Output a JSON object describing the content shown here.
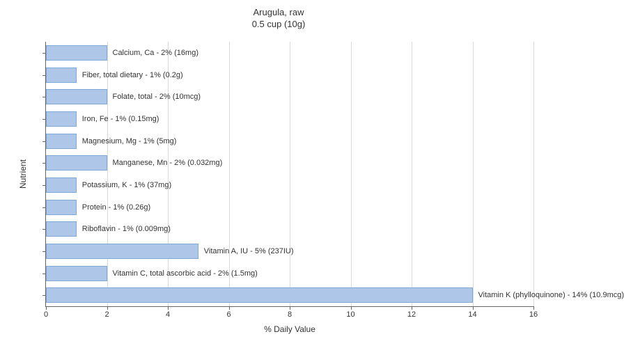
{
  "chart": {
    "type": "bar-horizontal",
    "title_line1": "Arugula, raw",
    "title_line2": "0.5 cup (10g)",
    "x_axis_label": "% Daily Value",
    "y_axis_label": "Nutrient",
    "xlim": [
      0,
      16
    ],
    "x_ticks": [
      0,
      2,
      4,
      6,
      8,
      10,
      12,
      14,
      16
    ],
    "bar_color": "#aec7e8",
    "bar_border_color": "#7fa8d6",
    "grid_color": "#d9d9d9",
    "axis_color": "#666666",
    "background_color": "#ffffff",
    "title_fontsize": 13,
    "label_fontsize": 11,
    "axis_label_fontsize": 12,
    "bars": [
      {
        "label": "Calcium, Ca - 2% (16mg)",
        "value": 2
      },
      {
        "label": "Fiber, total dietary - 1% (0.2g)",
        "value": 1
      },
      {
        "label": "Folate, total - 2% (10mcg)",
        "value": 2
      },
      {
        "label": "Iron, Fe - 1% (0.15mg)",
        "value": 1
      },
      {
        "label": "Magnesium, Mg - 1% (5mg)",
        "value": 1
      },
      {
        "label": "Manganese, Mn - 2% (0.032mg)",
        "value": 2
      },
      {
        "label": "Potassium, K - 1% (37mg)",
        "value": 1
      },
      {
        "label": "Protein - 1% (0.26g)",
        "value": 1
      },
      {
        "label": "Riboflavin - 1% (0.009mg)",
        "value": 1
      },
      {
        "label": "Vitamin A, IU - 5% (237IU)",
        "value": 5
      },
      {
        "label": "Vitamin C, total ascorbic acid - 2% (1.5mg)",
        "value": 2
      },
      {
        "label": "Vitamin K (phylloquinone) - 14% (10.9mcg)",
        "value": 14
      }
    ]
  }
}
